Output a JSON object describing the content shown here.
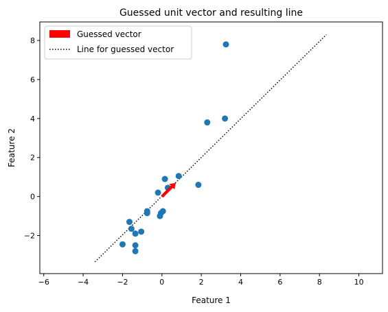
{
  "chart_data": {
    "type": "scatter",
    "title": "Guessed unit vector and resulting line",
    "xlabel": "Feature 1",
    "ylabel": "Feature 2",
    "xlim": [
      -6.2,
      11.2
    ],
    "ylim": [
      -3.95,
      8.95
    ],
    "xticks": [
      -6,
      -4,
      -2,
      0,
      2,
      4,
      6,
      8,
      10
    ],
    "yticks": [
      -2,
      0,
      2,
      4,
      6,
      8
    ],
    "grid": false,
    "legend_position": "top-left",
    "point_color": "#1f77b4",
    "points": [
      {
        "x": -2.0,
        "y": -2.45
      },
      {
        "x": -1.65,
        "y": -1.3
      },
      {
        "x": -1.55,
        "y": -1.65
      },
      {
        "x": -1.35,
        "y": -1.9
      },
      {
        "x": -1.35,
        "y": -2.5
      },
      {
        "x": -1.35,
        "y": -2.8
      },
      {
        "x": -1.05,
        "y": -1.8
      },
      {
        "x": -0.75,
        "y": -0.75
      },
      {
        "x": -0.75,
        "y": -0.85
      },
      {
        "x": -0.2,
        "y": 0.2
      },
      {
        "x": -0.1,
        "y": -1.0
      },
      {
        "x": -0.05,
        "y": -0.85
      },
      {
        "x": 0.05,
        "y": -0.75
      },
      {
        "x": 0.15,
        "y": 0.9
      },
      {
        "x": 0.3,
        "y": 0.45
      },
      {
        "x": 0.85,
        "y": 1.05
      },
      {
        "x": 1.85,
        "y": 0.6
      },
      {
        "x": 2.3,
        "y": 3.8
      },
      {
        "x": 3.2,
        "y": 4.0
      },
      {
        "x": 3.25,
        "y": 7.8
      }
    ],
    "line": {
      "name": "Line for guessed vector",
      "style": "dotted",
      "color": "#000000",
      "x": [
        -3.4,
        8.35
      ],
      "y": [
        -3.35,
        8.3
      ]
    },
    "vector": {
      "name": "Guessed vector",
      "color": "#ff0000",
      "origin": [
        0.0,
        0.0
      ],
      "tip": [
        0.7,
        0.7
      ]
    }
  }
}
